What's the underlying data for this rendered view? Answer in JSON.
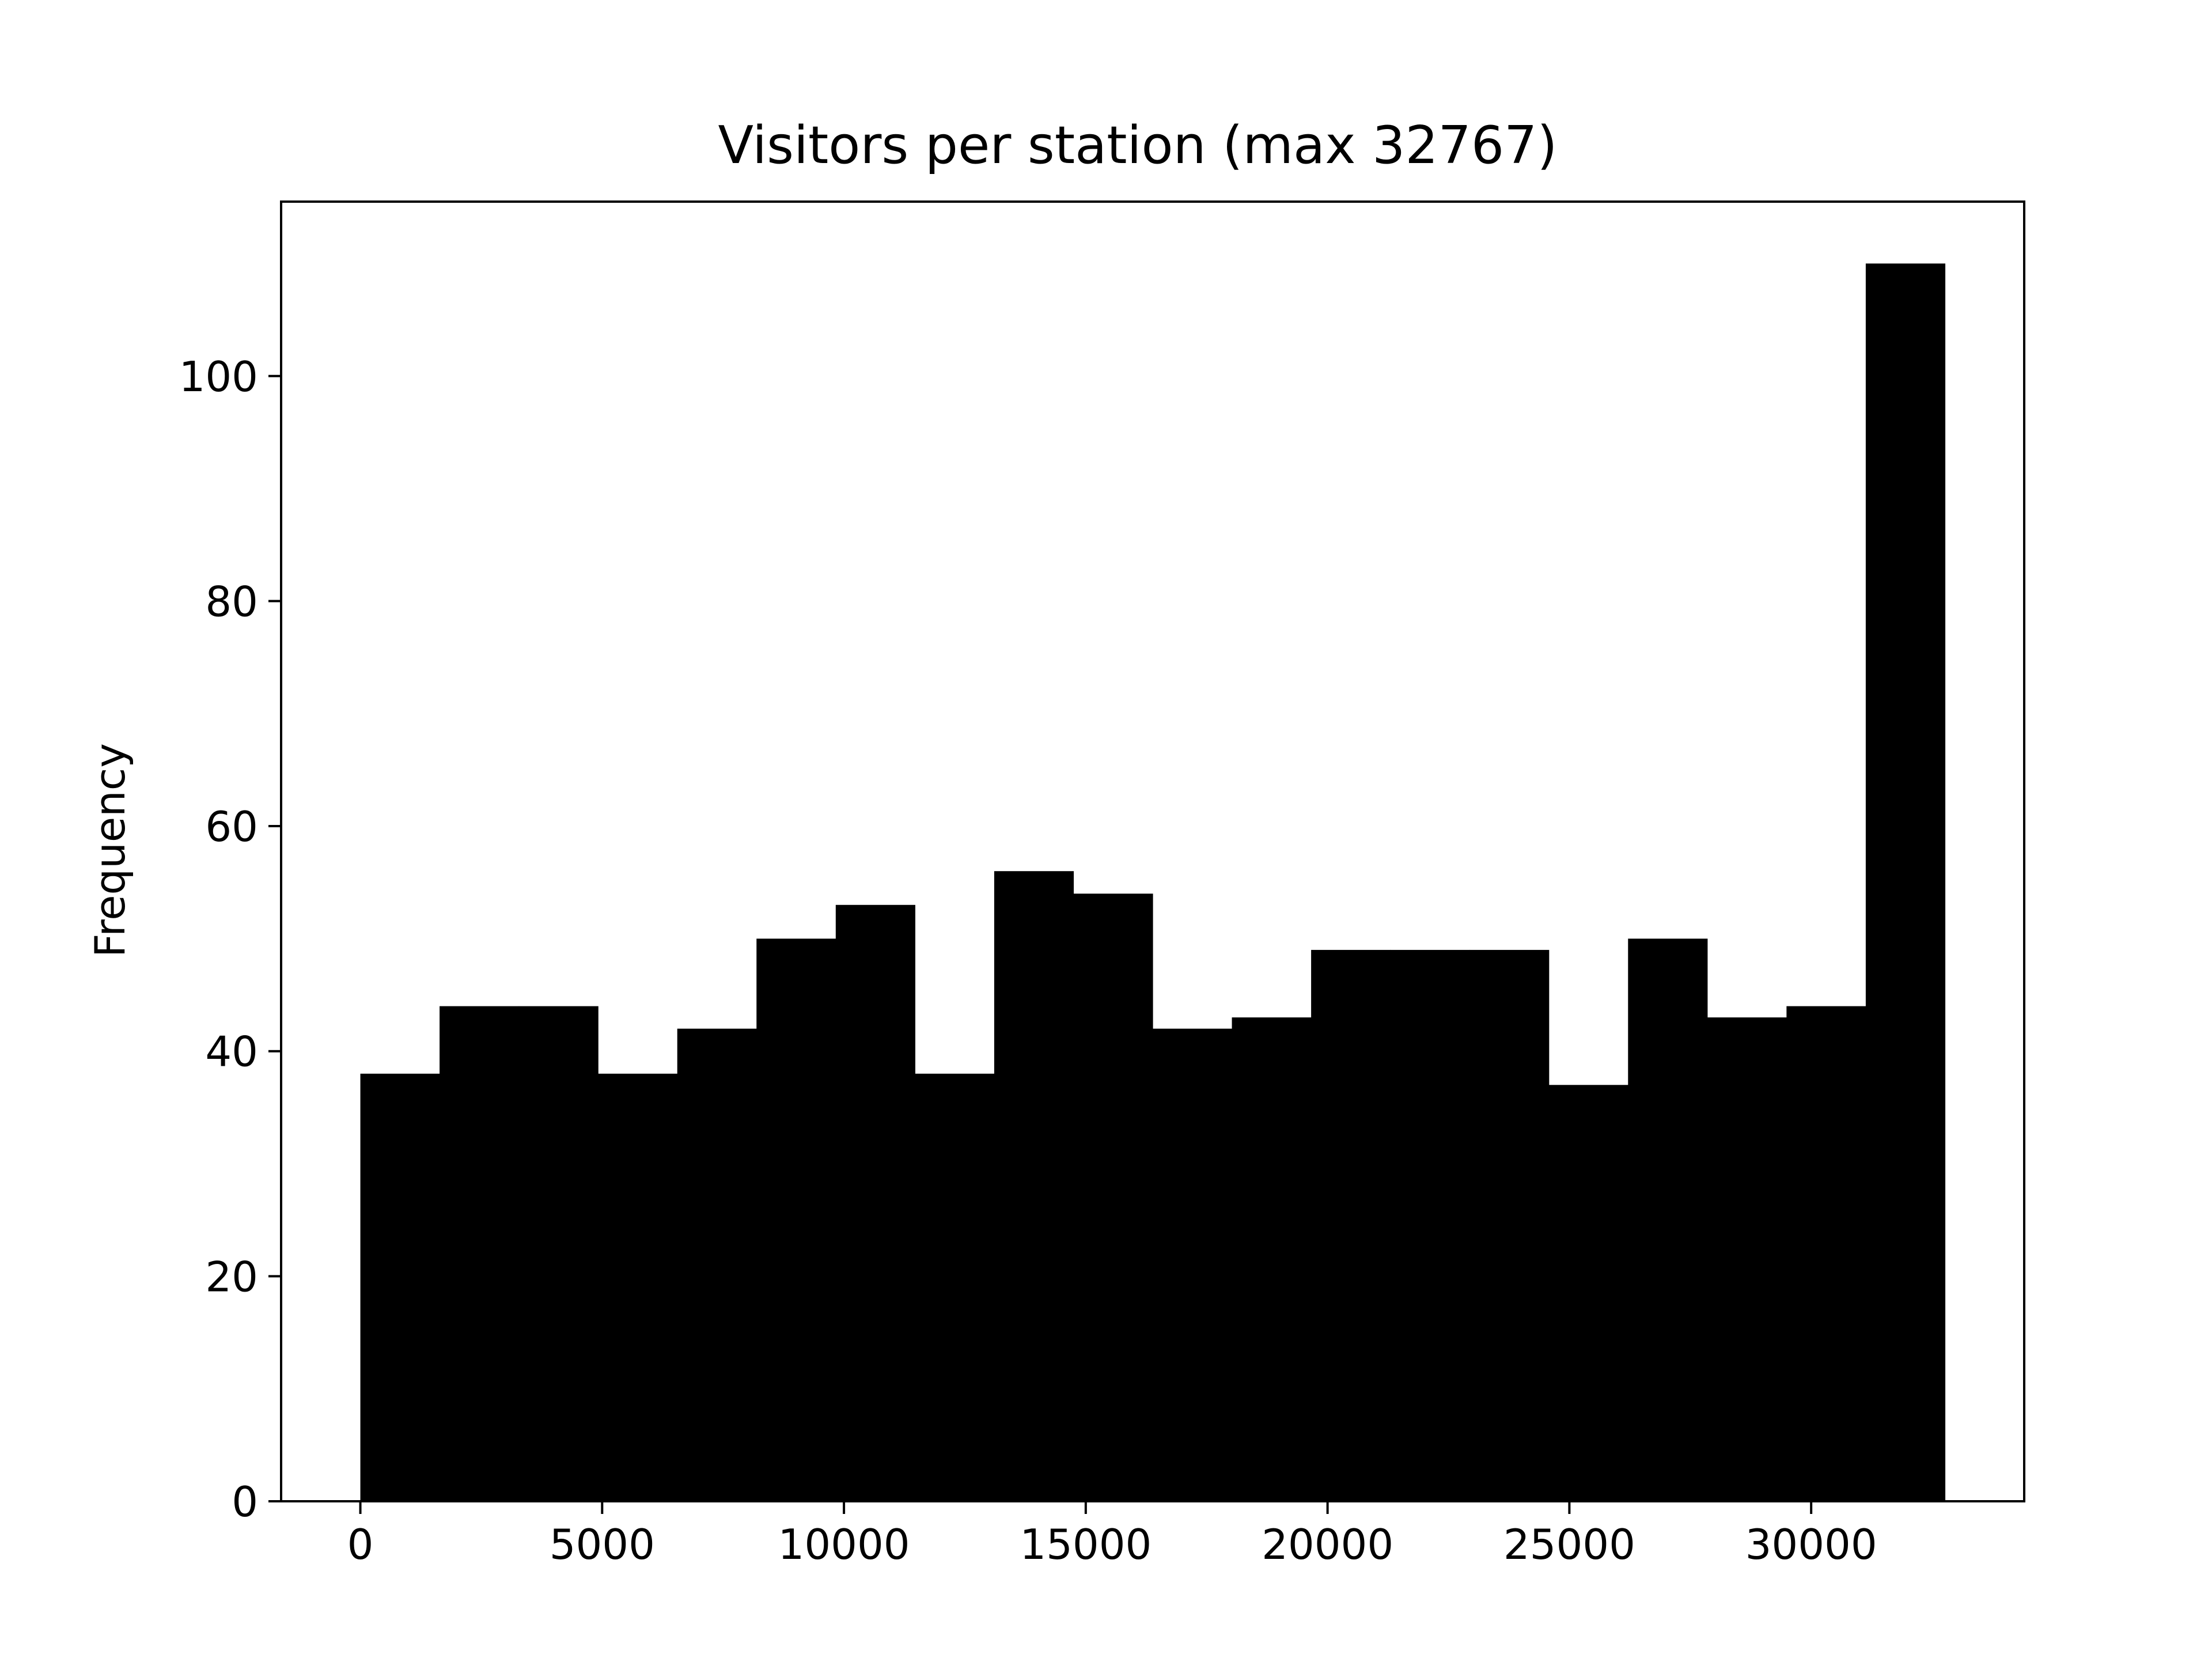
{
  "chart_data": {
    "type": "bar",
    "title": "Visitors per station (max 32767)",
    "xlabel": "",
    "ylabel": "Frequency",
    "bin_width": 1638.35,
    "bins": [
      {
        "x0": 0.0,
        "x1": 1638.35,
        "count": 38
      },
      {
        "x0": 1638.35,
        "x1": 3276.7,
        "count": 44
      },
      {
        "x0": 3276.7,
        "x1": 4915.05,
        "count": 44
      },
      {
        "x0": 4915.05,
        "x1": 6553.4,
        "count": 38
      },
      {
        "x0": 6553.4,
        "x1": 8191.75,
        "count": 42
      },
      {
        "x0": 8191.75,
        "x1": 9830.1,
        "count": 50
      },
      {
        "x0": 9830.1,
        "x1": 11468.45,
        "count": 53
      },
      {
        "x0": 11468.45,
        "x1": 13106.8,
        "count": 38
      },
      {
        "x0": 13106.8,
        "x1": 14745.15,
        "count": 56
      },
      {
        "x0": 14745.15,
        "x1": 16383.5,
        "count": 54
      },
      {
        "x0": 16383.5,
        "x1": 18021.85,
        "count": 42
      },
      {
        "x0": 18021.85,
        "x1": 19660.2,
        "count": 43
      },
      {
        "x0": 19660.2,
        "x1": 21298.55,
        "count": 49
      },
      {
        "x0": 21298.55,
        "x1": 22936.9,
        "count": 49
      },
      {
        "x0": 22936.9,
        "x1": 24575.25,
        "count": 49
      },
      {
        "x0": 24575.25,
        "x1": 26213.6,
        "count": 37
      },
      {
        "x0": 26213.6,
        "x1": 27851.95,
        "count": 50
      },
      {
        "x0": 27851.95,
        "x1": 29490.3,
        "count": 43
      },
      {
        "x0": 29490.3,
        "x1": 31128.65,
        "count": 44
      },
      {
        "x0": 31128.65,
        "x1": 32767.0,
        "count": 110
      }
    ],
    "xlim": [
      -1638.35,
      34405.35
    ],
    "ylim": [
      0,
      115.5
    ],
    "xticks": [
      0,
      5000,
      10000,
      15000,
      20000,
      25000,
      30000
    ],
    "yticks": [
      0,
      20,
      40,
      60,
      80,
      100
    ],
    "bar_color": "#000000",
    "grid": false,
    "legend": "none"
  }
}
